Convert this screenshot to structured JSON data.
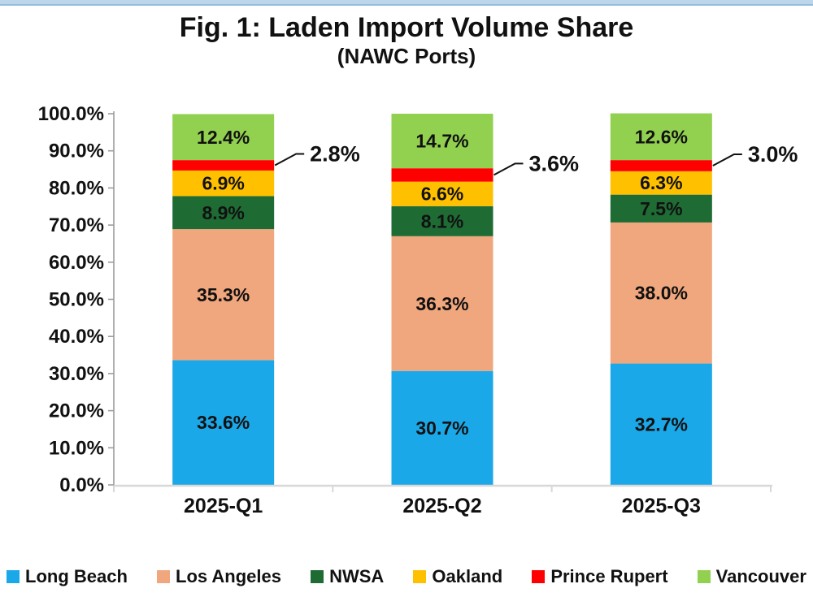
{
  "page": {
    "top_band_fill": "#BCD6EA",
    "top_band_line": "#94BBDC",
    "background": "#FFFFFF",
    "text_color": "#111111"
  },
  "header": {
    "title": "Fig. 1: Laden Import Volume Share",
    "subtitle": "(NAWC Ports)"
  },
  "chart_data": {
    "type": "bar",
    "stacked": true,
    "title": "Fig. 1: Laden Import Volume Share",
    "subtitle": "(NAWC Ports)",
    "categories": [
      "2025-Q1",
      "2025-Q2",
      "2025-Q3"
    ],
    "series": [
      {
        "name": "Long Beach",
        "color": "#1BA8E8",
        "values": [
          33.6,
          30.7,
          32.7
        ],
        "labels": [
          "33.6%",
          "30.7%",
          "32.7%"
        ],
        "label_mode": "inside"
      },
      {
        "name": "Los Angeles",
        "color": "#F1A77E",
        "values": [
          35.3,
          36.3,
          38.0
        ],
        "labels": [
          "35.3%",
          "36.3%",
          "38.0%"
        ],
        "label_mode": "inside"
      },
      {
        "name": "NWSA",
        "color": "#1E6B34",
        "values": [
          8.9,
          8.1,
          7.5
        ],
        "labels": [
          "8.9%",
          "8.1%",
          "7.5%"
        ],
        "label_mode": "inside"
      },
      {
        "name": "Oakland",
        "color": "#FFC000",
        "values": [
          6.9,
          6.6,
          6.3
        ],
        "labels": [
          "6.9%",
          "6.6%",
          "6.3%"
        ],
        "label_mode": "inside"
      },
      {
        "name": "Prince Rupert",
        "color": "#FF0000",
        "values": [
          2.8,
          3.6,
          3.0
        ],
        "labels": [
          "2.8%",
          "3.6%",
          "3.0%"
        ],
        "label_mode": "callout"
      },
      {
        "name": "Vancouver",
        "color": "#92D050",
        "values": [
          12.4,
          14.7,
          12.6
        ],
        "labels": [
          "12.4%",
          "14.7%",
          "12.6%"
        ],
        "label_mode": "inside"
      }
    ],
    "y_axis": {
      "min": 0,
      "max": 100,
      "step": 10,
      "tick_labels": [
        "0.0%",
        "10.0%",
        "20.0%",
        "30.0%",
        "40.0%",
        "50.0%",
        "60.0%",
        "70.0%",
        "80.0%",
        "90.0%",
        "100.0%"
      ]
    },
    "grid": false,
    "legend_position": "bottom",
    "axis_colors": {
      "y_axis": "#9C9C9C",
      "x_axis": "#D8D8D8"
    },
    "label_color": "#111111"
  }
}
